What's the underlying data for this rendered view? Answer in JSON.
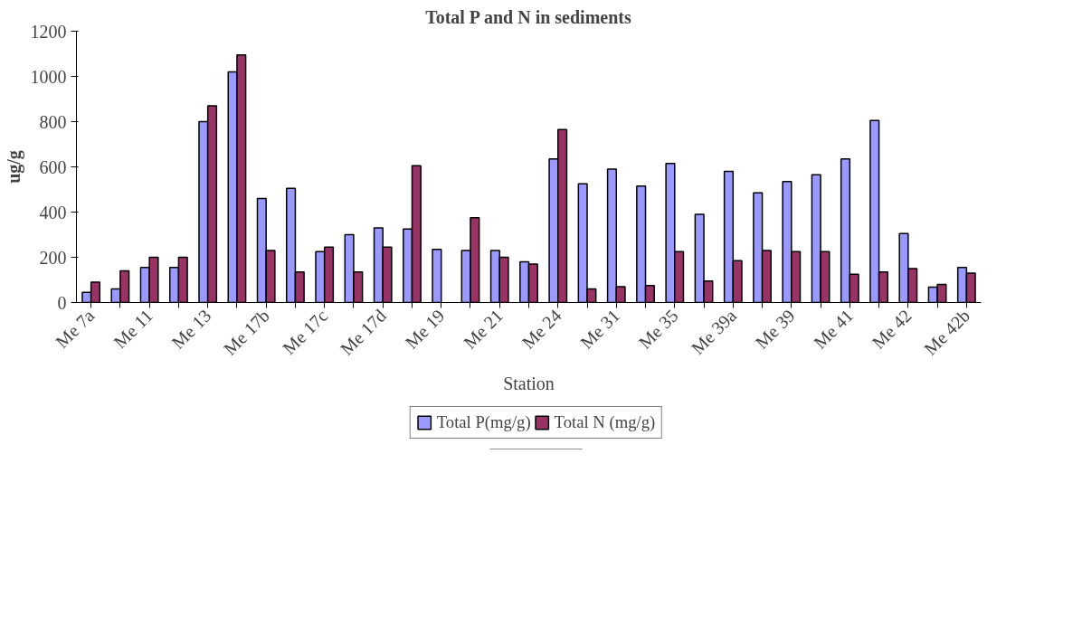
{
  "chart_data": {
    "type": "bar",
    "title": "Total P and N in sediments",
    "xlabel": "Station",
    "ylabel": "ug/g",
    "categories": [
      "Me 7a",
      null,
      "Me 11",
      null,
      "Me 13",
      null,
      "Me 17b",
      null,
      "Me 17c",
      null,
      "Me 17d",
      null,
      "Me 19",
      null,
      "Me 21",
      null,
      "Me 24",
      null,
      "Me 31",
      null,
      "Me 35",
      null,
      "Me 39a",
      null,
      "Me 39",
      null,
      "Me 41",
      null,
      "Me 42",
      null,
      "Me 42b"
    ],
    "series": [
      {
        "name": "Total P(mg/g)",
        "color": "#9999ff",
        "values": [
          45,
          60,
          155,
          155,
          800,
          1020,
          460,
          505,
          225,
          300,
          330,
          325,
          235,
          230,
          230,
          180,
          635,
          525,
          590,
          515,
          615,
          390,
          580,
          485,
          535,
          565,
          635,
          805,
          305,
          68,
          155
        ]
      },
      {
        "name": "Total N (mg/g)",
        "color": "#993366",
        "values": [
          90,
          140,
          200,
          200,
          870,
          1095,
          230,
          135,
          245,
          135,
          245,
          605,
          null,
          375,
          200,
          170,
          765,
          60,
          70,
          75,
          225,
          95,
          185,
          230,
          225,
          225,
          125,
          135,
          150,
          80,
          130
        ]
      }
    ],
    "ylim": [
      0,
      1200
    ],
    "yticks": [
      0,
      200,
      400,
      600,
      800,
      1000,
      1200
    ],
    "grid": false,
    "legend": "bottom"
  }
}
